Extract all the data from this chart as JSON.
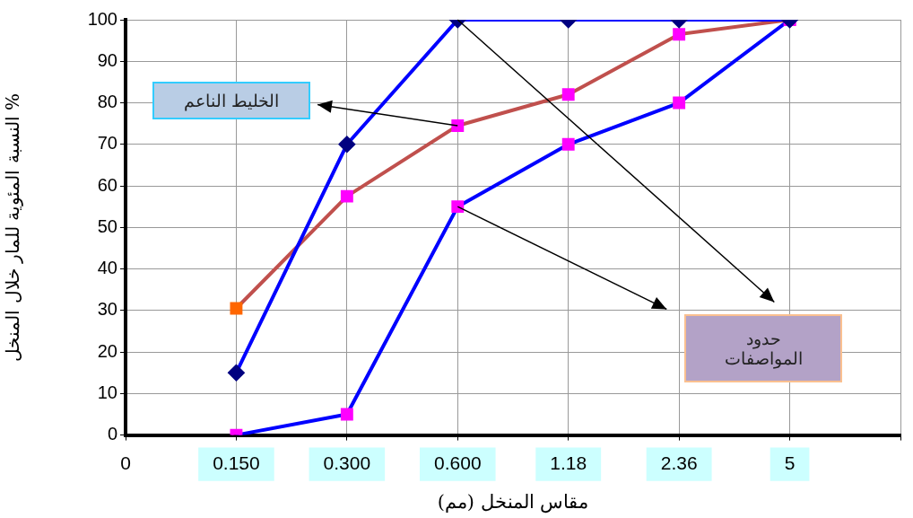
{
  "chart_data": {
    "type": "line",
    "xlabel": "مقاس المنخل (مم)",
    "ylabel": "النسبة المئوية للمار خلال المنخل %",
    "categories": [
      "0",
      "0.150",
      "0.300",
      "0.600",
      "1.18",
      "2.36",
      "5",
      null
    ],
    "series": [
      {
        "color": "#0000ff",
        "marker": "diamond",
        "colors": [
          null,
          "#000080",
          "#000080",
          "#000080",
          "#000080",
          "#000080",
          "#000080",
          null
        ],
        "values": [
          null,
          15,
          70,
          100,
          100,
          100,
          100,
          null
        ]
      },
      {
        "color": "#0000ff",
        "marker": "square",
        "colors": [
          null,
          "#ff00ff",
          "#ff00ff",
          "#ff00ff",
          "#ff00ff",
          "#ff00ff",
          "#ff00ff",
          null
        ],
        "values": [
          null,
          0,
          5,
          55,
          70,
          80,
          100,
          null
        ]
      },
      {
        "color": "#c0504d",
        "marker": "square",
        "colors": [
          null,
          "#ff6600",
          "#ff00ff",
          "#ff00ff",
          "#ff00ff",
          "#ff00ff",
          "#ff00ff",
          null
        ],
        "values": [
          null,
          30.5,
          57.5,
          74.5,
          82,
          96.5,
          100,
          null
        ]
      }
    ],
    "ylim": [
      0,
      100
    ],
    "yticks": [
      0,
      10,
      20,
      30,
      40,
      50,
      60,
      70,
      80,
      90,
      100
    ],
    "grid": true,
    "legend": false,
    "annotations": [
      "الخليط الناعم",
      "حدود المواصفات"
    ]
  }
}
